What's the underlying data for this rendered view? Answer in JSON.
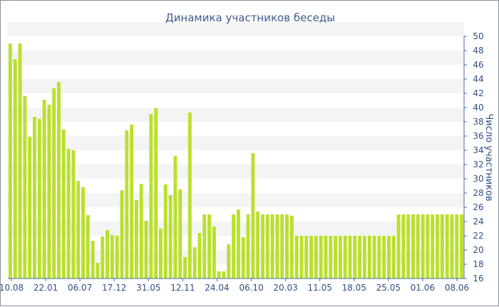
{
  "chart_data": {
    "type": "bar",
    "title": "Динамика участников беседы",
    "xlabel": "",
    "ylabel": "Число участников",
    "ylim": [
      16,
      50
    ],
    "yticks": [
      16,
      18,
      20,
      22,
      24,
      26,
      28,
      30,
      32,
      34,
      36,
      38,
      40,
      42,
      44,
      46,
      48,
      50
    ],
    "grid": "horizontal bands",
    "x_tick_labels": [
      "10.08",
      "22.01",
      "06.07",
      "17.12",
      "31.05",
      "12.11",
      "24.04",
      "06.10",
      "20.03",
      "11.05",
      "18.05",
      "25.05",
      "01.06",
      "08.06"
    ],
    "values": [
      49,
      46.8,
      49,
      41.6,
      35.9,
      38.7,
      38.4,
      41.1,
      40.4,
      42.7,
      43.6,
      36.9,
      34.2,
      34.0,
      29.7,
      28.8,
      24.9,
      21.3,
      18.2,
      21.9,
      22.8,
      22.1,
      22.0,
      28.4,
      36.8,
      37.6,
      27.0,
      29.3,
      24.1,
      39.1,
      39.9,
      23.0,
      29.2,
      27.7,
      33.2,
      28.5,
      19.0,
      39.3,
      20.4,
      22.4,
      25.0,
      25.0,
      23.3,
      17.0,
      17.0,
      20.8,
      25.0,
      25.7,
      21.8,
      25.0,
      33.6,
      25.4,
      25.0,
      25.0,
      25.0,
      25.0,
      25.0,
      25.0,
      24.8,
      22.0,
      22.0,
      22.0,
      22.0,
      22.0,
      22.0,
      22.0,
      22.0,
      22.0,
      22.0,
      22.0,
      22.0,
      22.0,
      22.0,
      22.0,
      22.0,
      22.0,
      22.0,
      22.0,
      22.0,
      22.0,
      25.0,
      25.0,
      25.0,
      25.0,
      25.0,
      25.0,
      25.0,
      25.0,
      25.0,
      25.0,
      25.0,
      25.0,
      25.0,
      25.0
    ],
    "colors": {
      "bar": "#b9e02d",
      "band": "#f4f4f4",
      "axis": "#4a68a0",
      "text": "#2d4f86"
    }
  }
}
